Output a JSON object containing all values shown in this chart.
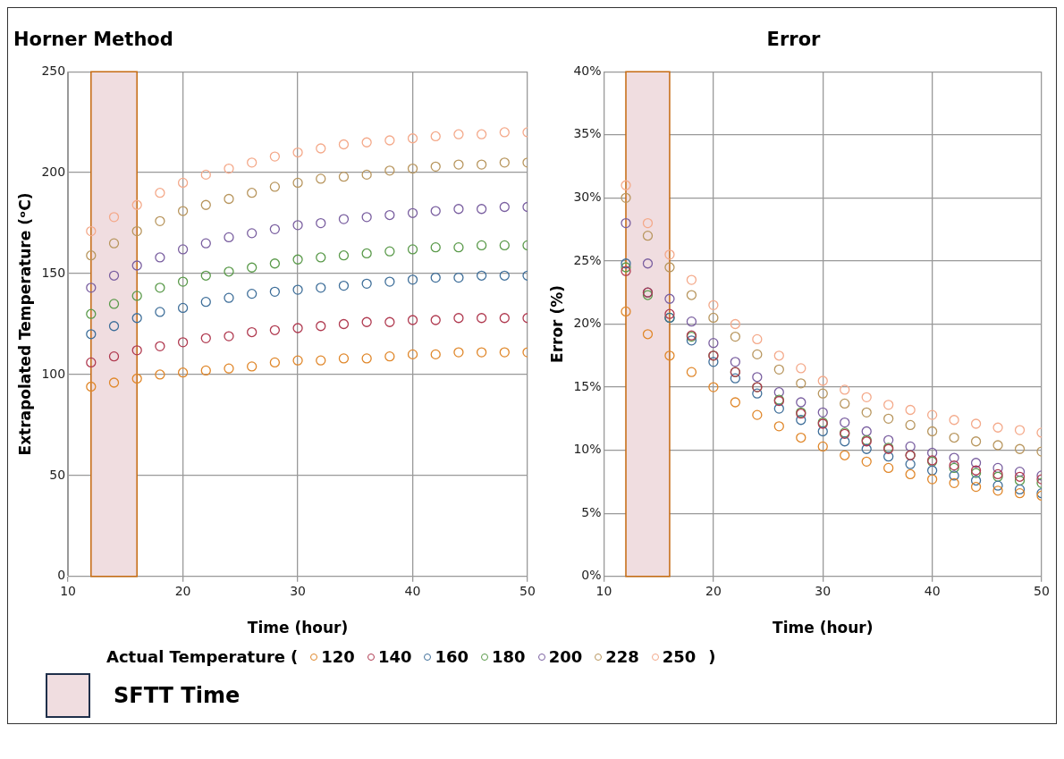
{
  "chart_data": [
    {
      "type": "scatter",
      "title": "Horner Method",
      "xlabel": "Time (hour)",
      "ylabel": "Extrapolated Temperature (ᵒC)",
      "legend_title": "Actual Temperature",
      "annotations": [
        "(",
        ")"
      ],
      "legend": "bottom",
      "marker": "circle",
      "grid": true,
      "x": [
        12,
        14,
        16,
        18,
        20,
        22,
        24,
        26,
        28,
        30,
        32,
        34,
        36,
        38,
        40,
        42,
        44,
        46,
        48,
        50
      ],
      "xlim": [
        10,
        50
      ],
      "xticks": [
        10,
        20,
        30,
        40,
        50
      ],
      "ylim": [
        0,
        250
      ],
      "yticks": [
        0,
        50,
        100,
        150,
        200,
        250
      ],
      "bands": [
        {
          "axis": "x",
          "from": 12,
          "to": 16,
          "label": "SFTT Time",
          "color": "#f0dde0"
        }
      ],
      "series": [
        {
          "name": "120",
          "color": "#e0872a",
          "values": [
            94,
            96,
            98,
            100,
            101,
            102,
            103,
            104,
            106,
            107,
            107,
            108,
            108,
            109,
            110,
            110,
            111,
            111,
            111,
            111
          ]
        },
        {
          "name": "140",
          "color": "#b03a50",
          "values": [
            106,
            109,
            112,
            114,
            116,
            118,
            119,
            121,
            122,
            123,
            124,
            125,
            126,
            126,
            127,
            127,
            128,
            128,
            128,
            128
          ]
        },
        {
          "name": "160",
          "color": "#3f6f9a",
          "values": [
            120,
            124,
            128,
            131,
            133,
            136,
            138,
            140,
            141,
            142,
            143,
            144,
            145,
            146,
            147,
            148,
            148,
            149,
            149,
            149
          ]
        },
        {
          "name": "180",
          "color": "#5a9a4a",
          "values": [
            130,
            135,
            139,
            143,
            146,
            149,
            151,
            153,
            155,
            157,
            158,
            159,
            160,
            161,
            162,
            163,
            163,
            164,
            164,
            164
          ]
        },
        {
          "name": "200",
          "color": "#7a5fa0",
          "values": [
            143,
            149,
            154,
            158,
            162,
            165,
            168,
            170,
            172,
            174,
            175,
            177,
            178,
            179,
            180,
            181,
            182,
            182,
            183,
            183
          ]
        },
        {
          "name": "228",
          "color": "#b8965e",
          "values": [
            159,
            165,
            171,
            176,
            181,
            184,
            187,
            190,
            193,
            195,
            197,
            198,
            199,
            201,
            202,
            203,
            204,
            204,
            205,
            205
          ]
        },
        {
          "name": "250",
          "color": "#f4a98a",
          "values": [
            171,
            178,
            184,
            190,
            195,
            199,
            202,
            205,
            208,
            210,
            212,
            214,
            215,
            216,
            217,
            218,
            219,
            219,
            220,
            220
          ]
        }
      ]
    },
    {
      "type": "scatter",
      "title": "Error",
      "xlabel": "Time (hour)",
      "ylabel": "Error (%)",
      "marker": "circle",
      "grid": true,
      "x": [
        12,
        14,
        16,
        18,
        20,
        22,
        24,
        26,
        28,
        30,
        32,
        34,
        36,
        38,
        40,
        42,
        44,
        46,
        48,
        50
      ],
      "xlim": [
        10,
        50
      ],
      "xticks": [
        10,
        20,
        30,
        40,
        50
      ],
      "ylim": [
        0,
        40
      ],
      "yticks": [
        {
          "value": 0,
          "label": "0%"
        },
        {
          "value": 5,
          "label": "5%"
        },
        {
          "value": 10,
          "label": "10%"
        },
        {
          "value": 15,
          "label": "15%"
        },
        {
          "value": 20,
          "label": "20%"
        },
        {
          "value": 25,
          "label": "25%"
        },
        {
          "value": 30,
          "label": "30%"
        },
        {
          "value": 35,
          "label": "35%"
        },
        {
          "value": 40,
          "label": "40%"
        }
      ],
      "bands": [
        {
          "axis": "x",
          "from": 12,
          "to": 16,
          "color": "#f0dde0"
        }
      ],
      "series": [
        {
          "color": "#e0872a",
          "values": [
            21,
            19.2,
            17.5,
            16.2,
            15,
            13.8,
            12.8,
            11.9,
            11,
            10.3,
            9.6,
            9.1,
            8.6,
            8.1,
            7.7,
            7.4,
            7.1,
            6.8,
            6.6,
            6.4
          ]
        },
        {
          "color": "#b03a50",
          "values": [
            24.2,
            22.5,
            20.8,
            19.1,
            17.5,
            16.2,
            15,
            13.9,
            12.9,
            12.1,
            11.3,
            10.7,
            10.1,
            9.6,
            9.2,
            8.8,
            8.4,
            8.1,
            7.9,
            7.7
          ]
        },
        {
          "color": "#3f6f9a",
          "values": [
            24.8,
            22.5,
            20.5,
            18.7,
            17,
            15.7,
            14.5,
            13.3,
            12.4,
            11.5,
            10.7,
            10.1,
            9.5,
            8.9,
            8.4,
            8,
            7.6,
            7.2,
            6.9,
            6.6
          ]
        },
        {
          "color": "#5a9a4a",
          "values": [
            24.5,
            22.3,
            20.5,
            19,
            17.5,
            16.2,
            15,
            14,
            13,
            12.2,
            11.4,
            10.8,
            10.2,
            9.6,
            9.1,
            8.6,
            8.2,
            7.9,
            7.6,
            7.4
          ]
        },
        {
          "color": "#7a5fa0",
          "values": [
            28,
            24.8,
            22,
            20.2,
            18.5,
            17,
            15.8,
            14.6,
            13.8,
            13,
            12.2,
            11.5,
            10.8,
            10.3,
            9.8,
            9.4,
            9,
            8.6,
            8.3,
            8
          ]
        },
        {
          "color": "#b8965e",
          "values": [
            30,
            27,
            24.5,
            22.3,
            20.5,
            19,
            17.6,
            16.4,
            15.3,
            14.5,
            13.7,
            13,
            12.5,
            12,
            11.5,
            11,
            10.7,
            10.4,
            10.1,
            9.9
          ]
        },
        {
          "color": "#f4a98a",
          "values": [
            31,
            28,
            25.5,
            23.5,
            21.5,
            20,
            18.8,
            17.5,
            16.5,
            15.5,
            14.8,
            14.2,
            13.6,
            13.2,
            12.8,
            12.4,
            12.1,
            11.8,
            11.6,
            11.4
          ]
        }
      ]
    }
  ]
}
